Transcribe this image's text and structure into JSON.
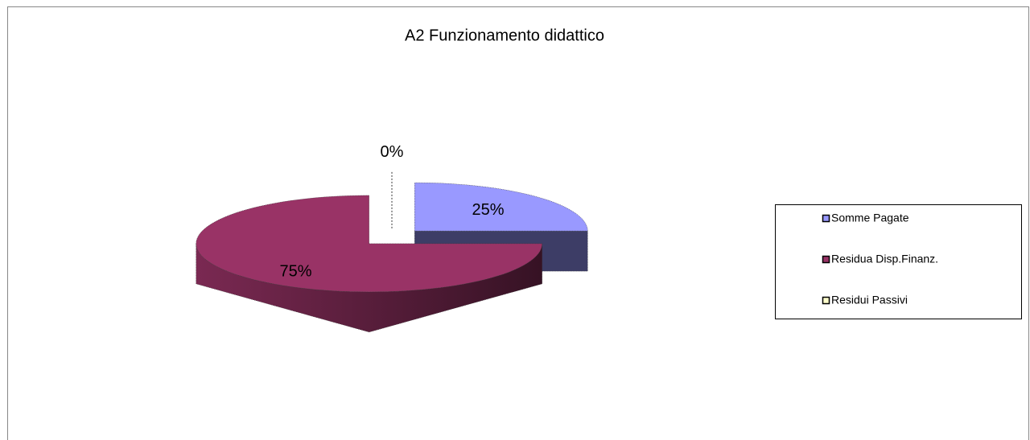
{
  "chart_data": {
    "type": "pie3d",
    "title": "A2 Funzionamento didattico",
    "categories": [
      "Somme Pagate",
      "Residua Disp.Finanz.",
      "Residui Passivi"
    ],
    "values": [
      25,
      75,
      0
    ],
    "value_labels": [
      "25%",
      "75%",
      "0%"
    ],
    "colors": [
      "#9999ff",
      "#993366",
      "#ffffcc"
    ],
    "legend": "right"
  }
}
